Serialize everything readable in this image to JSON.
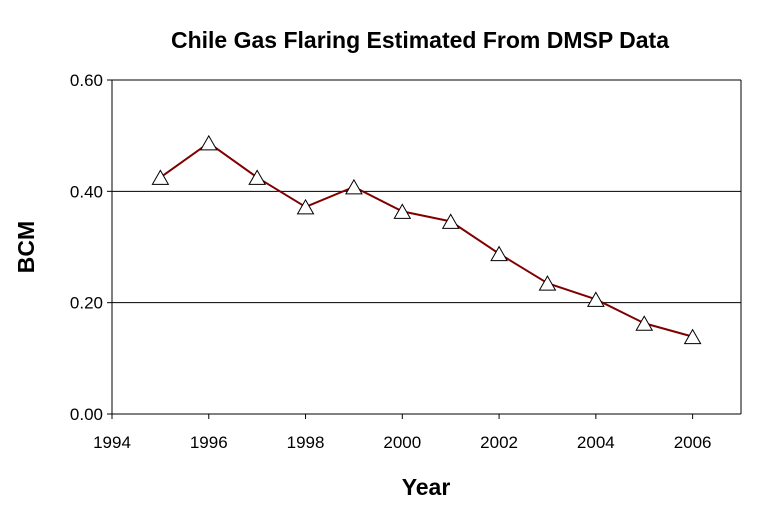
{
  "chart_data": {
    "type": "line",
    "title": "Chile Gas Flaring Estimated From DMSP Data",
    "xlabel": "Year",
    "ylabel": "BCM",
    "xlim": [
      1994,
      2007
    ],
    "ylim": [
      0,
      0.6
    ],
    "x_ticks": [
      1994,
      1996,
      1998,
      2000,
      2002,
      2004,
      2006
    ],
    "x_tick_labels": [
      "1994",
      "1996",
      "1998",
      "2000",
      "2002",
      "2004",
      "2006"
    ],
    "y_ticks": [
      0,
      0.2,
      0.4,
      0.6
    ],
    "y_tick_labels": [
      "0.00",
      "0.20",
      "0.40",
      "0.60"
    ],
    "gridlines_y": [
      0.2,
      0.4
    ],
    "series": [
      {
        "name": "Chile",
        "color": "#800000",
        "marker": "triangle",
        "x": [
          1995,
          1996,
          1997,
          1998,
          1999,
          2000,
          2001,
          2002,
          2003,
          2004,
          2005,
          2006
        ],
        "values": [
          0.425,
          0.487,
          0.425,
          0.372,
          0.408,
          0.364,
          0.346,
          0.288,
          0.235,
          0.206,
          0.163,
          0.139
        ]
      }
    ]
  }
}
